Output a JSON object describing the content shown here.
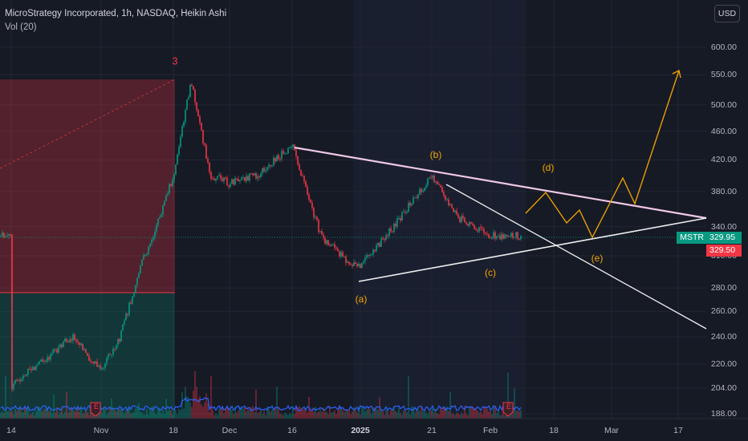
{
  "legend": {
    "title": "MicroStrategy Incorporated, 1h, NASDAQ, Heikin Ashi",
    "volume": "Vol (20)"
  },
  "currency_button": "USD",
  "price_axis": [
    "600.00",
    "550.00",
    "500.00",
    "460.00",
    "420.00",
    "380.00",
    "340.00",
    "310.00",
    "280.00",
    "260.00",
    "240.00",
    "220.00",
    "204.00",
    "188.00"
  ],
  "time_axis": [
    {
      "label": "14",
      "bold": false
    },
    {
      "label": "Nov",
      "bold": false
    },
    {
      "label": "18",
      "bold": false
    },
    {
      "label": "Dec",
      "bold": false
    },
    {
      "label": "16",
      "bold": false
    },
    {
      "label": "2025",
      "bold": true
    },
    {
      "label": "21",
      "bold": false
    },
    {
      "label": "Feb",
      "bold": false
    },
    {
      "label": "18",
      "bold": false
    },
    {
      "label": "Mar",
      "bold": false
    },
    {
      "label": "17",
      "bold": false
    }
  ],
  "symbol_tag": "MSTR",
  "last_price": "329.95",
  "second_price": "329.50",
  "wave_labels": [
    "(a)",
    "(b)",
    "(c)",
    "(d)",
    "(e)"
  ],
  "marker_label": "3",
  "earnings_icon": "E",
  "colors": {
    "up": "#089981",
    "down": "#f23645",
    "trendline": "#f0c8e8",
    "projection": "#f7a600",
    "volume": "#2962ff"
  },
  "chart_data": {
    "type": "candlestick",
    "series_name": "MicroStrategy Incorporated",
    "exchange": "NASDAQ",
    "interval": "1h",
    "chart_style": "Heikin Ashi",
    "y_scale": "log",
    "y_ticks": [
      600,
      550,
      500,
      460,
      420,
      380,
      340,
      310,
      280,
      260,
      240,
      220,
      204,
      188
    ],
    "x_ticks": [
      "14",
      "Nov",
      "18",
      "Dec",
      "16",
      "2025",
      "21",
      "Feb",
      "18",
      "Mar",
      "17"
    ],
    "price_path_approx": [
      {
        "x": "Oct 14",
        "y": 205
      },
      {
        "x": "Oct 25",
        "y": 240
      },
      {
        "x": "Nov",
        "y": 215
      },
      {
        "x": "Nov 5",
        "y": 240
      },
      {
        "x": "Nov 10",
        "y": 300
      },
      {
        "x": "Nov 13",
        "y": 340
      },
      {
        "x": "Nov 18",
        "y": 400
      },
      {
        "x": "Nov 21",
        "y": 540
      },
      {
        "x": "Nov 25",
        "y": 400
      },
      {
        "x": "Dec",
        "y": 390
      },
      {
        "x": "Dec 10",
        "y": 400
      },
      {
        "x": "Dec 16",
        "y": 440
      },
      {
        "x": "Dec 24",
        "y": 330
      },
      {
        "x": "Dec 31",
        "y": 300
      },
      {
        "x": "2025",
        "y": 300
      },
      {
        "x": "Jan 10",
        "y": 340
      },
      {
        "x": "Jan 21",
        "y": 400
      },
      {
        "x": "Jan 27",
        "y": 350
      },
      {
        "x": "Feb",
        "y": 330
      },
      {
        "x": "Feb 7",
        "y": 330
      }
    ],
    "wave_points": [
      {
        "label": "(a)",
        "y": 290
      },
      {
        "label": "(b)",
        "y": 400
      },
      {
        "label": "(c)",
        "y": 312
      },
      {
        "label": "(d)",
        "y": 380
      },
      {
        "label": "(e)",
        "y": 320
      }
    ],
    "projection_target": 560,
    "last_price": 329.95
  }
}
